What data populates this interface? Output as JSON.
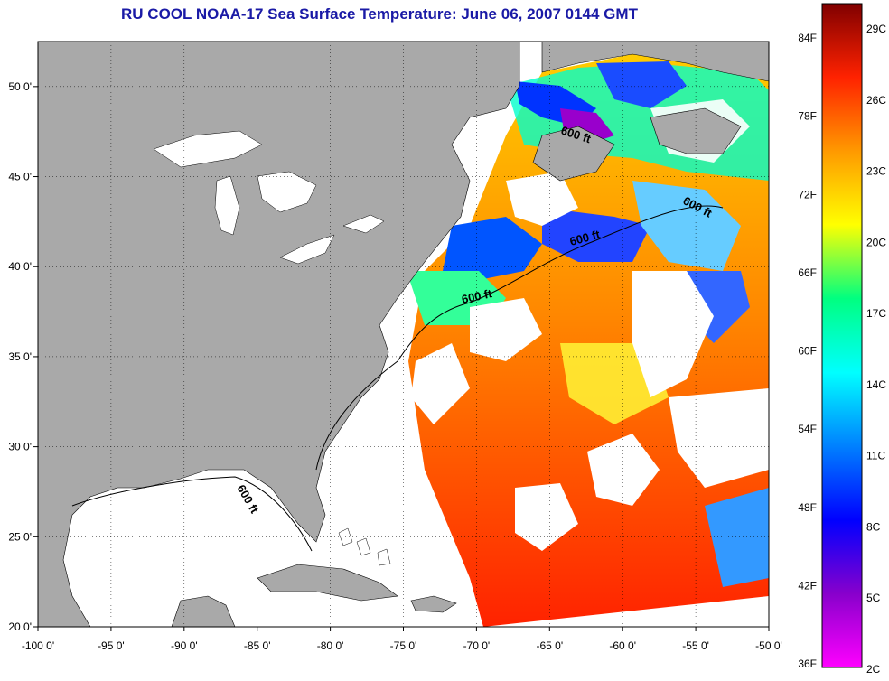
{
  "title": "RU COOL  NOAA-17  Sea Surface Temperature:  June 06, 2007 0144 GMT",
  "map": {
    "lon_range": [
      -100,
      -50
    ],
    "lat_range": [
      20,
      52.5
    ],
    "lon_ticks": [
      {
        "value": -100,
        "label": "-100 0'"
      },
      {
        "value": -95,
        "label": "-95 0'"
      },
      {
        "value": -90,
        "label": "-90 0'"
      },
      {
        "value": -85,
        "label": "-85 0'"
      },
      {
        "value": -80,
        "label": "-80 0'"
      },
      {
        "value": -75,
        "label": "-75 0'"
      },
      {
        "value": -70,
        "label": "-70 0'"
      },
      {
        "value": -65,
        "label": "-65 0'"
      },
      {
        "value": -60,
        "label": "-60 0'"
      },
      {
        "value": -55,
        "label": "-55 0'"
      },
      {
        "value": -50,
        "label": "-50 0'"
      }
    ],
    "lat_ticks": [
      {
        "value": 20,
        "label": "20 0'"
      },
      {
        "value": 25,
        "label": "25 0'"
      },
      {
        "value": 30,
        "label": "30 0'"
      },
      {
        "value": 35,
        "label": "35 0'"
      },
      {
        "value": 40,
        "label": "40 0'"
      },
      {
        "value": 45,
        "label": "45 0'"
      },
      {
        "value": 50,
        "label": "50 0'"
      }
    ],
    "contour_labels": [
      "600 ft",
      "600 ft",
      "600 ft",
      "600 ft",
      "600 ft"
    ],
    "colors": {
      "land": "#a9a9a9",
      "cloud": "#ffffff",
      "frame": "#000000",
      "title": "#1a1aa6"
    }
  },
  "colorbar": {
    "fahrenheit_labels": [
      "84F",
      "78F",
      "72F",
      "66F",
      "60F",
      "54F",
      "48F",
      "42F",
      "36F"
    ],
    "celsius_labels": [
      "29C",
      "26C",
      "23C",
      "20C",
      "17C",
      "14C",
      "11C",
      "8C",
      "5C",
      "2C"
    ],
    "gradient": [
      "#ff00ff",
      "#8800cc",
      "#0000ff",
      "#0080ff",
      "#00ffff",
      "#00ff80",
      "#ffff00",
      "#ff9900",
      "#ff2200",
      "#800000"
    ]
  }
}
